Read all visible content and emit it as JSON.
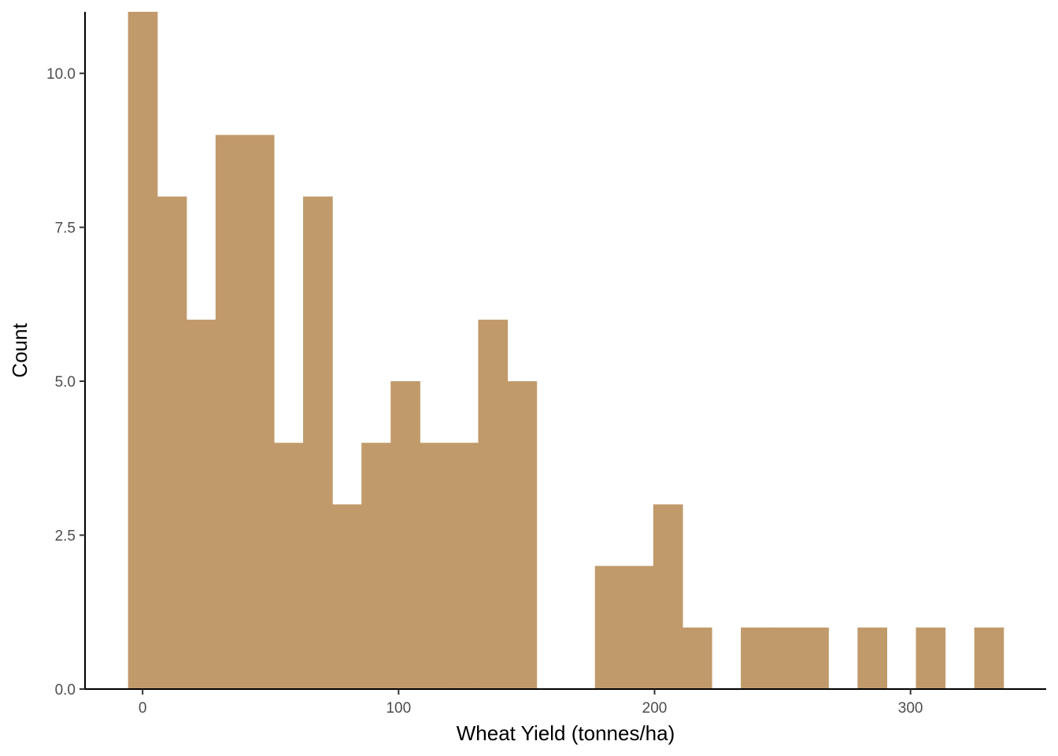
{
  "chart_data": {
    "type": "bar",
    "subtype": "histogram",
    "title": "",
    "xlabel": "Wheat Yield (tonnes/ha)",
    "ylabel": "Count",
    "bin_width": 11.4,
    "bins": [
      {
        "x0": -5.7,
        "x1": 5.7,
        "count": 11
      },
      {
        "x0": 5.7,
        "x1": 17.1,
        "count": 8
      },
      {
        "x0": 17.1,
        "x1": 28.5,
        "count": 6
      },
      {
        "x0": 28.5,
        "x1": 39.9,
        "count": 9
      },
      {
        "x0": 39.9,
        "x1": 51.3,
        "count": 9
      },
      {
        "x0": 51.3,
        "x1": 62.7,
        "count": 4
      },
      {
        "x0": 62.7,
        "x1": 74.1,
        "count": 8
      },
      {
        "x0": 74.1,
        "x1": 85.5,
        "count": 3
      },
      {
        "x0": 85.5,
        "x1": 96.9,
        "count": 4
      },
      {
        "x0": 96.9,
        "x1": 108.3,
        "count": 5
      },
      {
        "x0": 108.3,
        "x1": 119.7,
        "count": 4
      },
      {
        "x0": 119.7,
        "x1": 131.1,
        "count": 4
      },
      {
        "x0": 131.1,
        "x1": 142.5,
        "count": 6
      },
      {
        "x0": 142.5,
        "x1": 153.9,
        "count": 5
      },
      {
        "x0": 153.9,
        "x1": 165.3,
        "count": 0
      },
      {
        "x0": 165.3,
        "x1": 176.7,
        "count": 0
      },
      {
        "x0": 176.7,
        "x1": 188.1,
        "count": 2
      },
      {
        "x0": 188.1,
        "x1": 199.5,
        "count": 2
      },
      {
        "x0": 199.5,
        "x1": 210.9,
        "count": 3
      },
      {
        "x0": 210.9,
        "x1": 222.3,
        "count": 1
      },
      {
        "x0": 222.3,
        "x1": 233.7,
        "count": 0
      },
      {
        "x0": 233.7,
        "x1": 245.1,
        "count": 1
      },
      {
        "x0": 245.1,
        "x1": 256.5,
        "count": 1
      },
      {
        "x0": 256.5,
        "x1": 267.9,
        "count": 1
      },
      {
        "x0": 267.9,
        "x1": 279.3,
        "count": 0
      },
      {
        "x0": 279.3,
        "x1": 290.7,
        "count": 1
      },
      {
        "x0": 290.7,
        "x1": 302.1,
        "count": 0
      },
      {
        "x0": 302.1,
        "x1": 313.5,
        "count": 1
      },
      {
        "x0": 313.5,
        "x1": 324.9,
        "count": 0
      },
      {
        "x0": 324.9,
        "x1": 336.3,
        "count": 1
      }
    ],
    "xlim": [
      -22.5,
      353
    ],
    "ylim": [
      0,
      11
    ],
    "x_ticks": [
      0,
      100,
      200,
      300
    ],
    "x_tick_labels": [
      "0",
      "100",
      "200",
      "300"
    ],
    "y_ticks": [
      0,
      2.5,
      5,
      7.5,
      10
    ],
    "y_tick_labels": [
      "0.0",
      "2.5",
      "5.0",
      "7.5",
      "10.0"
    ],
    "bar_color": "#C19A6B",
    "grid": false,
    "legend": "none"
  }
}
